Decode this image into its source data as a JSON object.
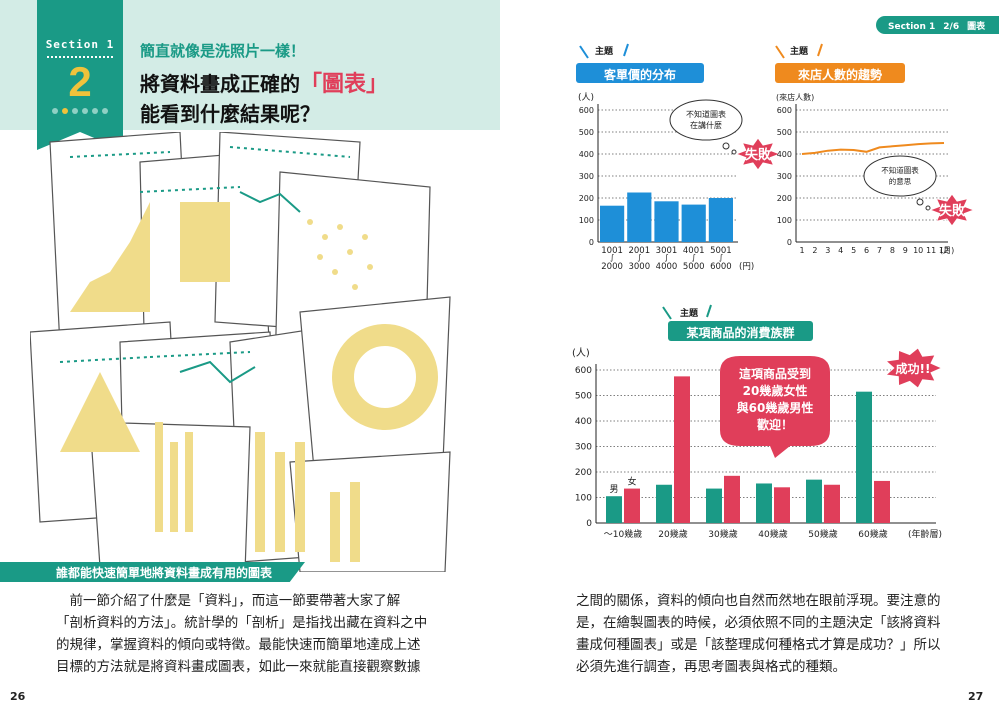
{
  "left_page": {
    "section_label": "Section 1",
    "section_number": "2",
    "subtitle": "簡直就像是洗照片一樣！",
    "title_line1_pre": "將資料畫成正確的",
    "title_highlight": "「圖表」",
    "title_line2": "能看到什麼結果呢？",
    "heading": "誰都能快速簡單地將資料畫成有用的圖表",
    "body_lines": [
      "　前一節介紹了什麼是「資料」，而這一節要帶著大家了解",
      "「剖析資料的方法」。統計學的「剖析」是指找出藏在資料之中",
      "的規律，掌握資料的傾向或特徵。最能快速而簡單地達成上述",
      "目標的方法就是將資料畫成圖表，如此一來就能直接觀察數據"
    ],
    "page_number": "26"
  },
  "right_page": {
    "section_tag_section": "Section 1",
    "section_tag_count": "2/6",
    "section_tag_label": "圖表",
    "theme_label": "主題",
    "body_lines": [
      "之間的關係，資料的傾向也自然而然地在眼前浮現。要注意的",
      "是，在繪製圖表的時候，必須依照不同的主題決定「該將資料",
      "畫成何種圖表」或是「該整理成何種格式才算是成功？」所以",
      "必須先進行調查，再思考圖表與格式的種類。"
    ],
    "page_number": "27"
  },
  "chart_data": [
    {
      "type": "bar",
      "title": "客單價的分布",
      "ylabel": "(人)",
      "xunit": "(円)",
      "ylim": [
        0,
        600
      ],
      "yticks": [
        "0",
        "100",
        "200",
        "300",
        "400",
        "500",
        "600"
      ],
      "categories": [
        {
          "top": "1001",
          "bottom": "2000"
        },
        {
          "top": "2001",
          "bottom": "3000"
        },
        {
          "top": "3001",
          "bottom": "4000"
        },
        {
          "top": "4001",
          "bottom": "5000"
        },
        {
          "top": "5001",
          "bottom": "6000"
        }
      ],
      "values": [
        165,
        225,
        185,
        170,
        200
      ],
      "bar_color": "#1e8fd8",
      "annotation": {
        "thought": [
          "不知道圖表",
          "在講什麼"
        ],
        "verdict": "失敗"
      }
    },
    {
      "type": "line",
      "title": "來店人數的趨勢",
      "ylabel": "(來店人數)",
      "xunit": "(月)",
      "ylim": [
        0,
        600
      ],
      "yticks": [
        "0",
        "100",
        "200",
        "300",
        "400",
        "500",
        "600"
      ],
      "x": [
        "1",
        "2",
        "3",
        "4",
        "5",
        "6",
        "7",
        "8",
        "9",
        "10",
        "11",
        "12"
      ],
      "values": [
        400,
        405,
        415,
        420,
        418,
        410,
        430,
        435,
        440,
        445,
        448,
        450
      ],
      "line_color": "#ef8a1e",
      "annotation": {
        "thought": [
          "不知道圖表",
          "的意思"
        ],
        "verdict": "失敗"
      }
    },
    {
      "type": "bar",
      "title": "某項商品的消費族群",
      "ylabel": "(人)",
      "xunit": "(年齡層)",
      "ylim": [
        0,
        600
      ],
      "yticks": [
        "0",
        "100",
        "200",
        "300",
        "400",
        "500",
        "600"
      ],
      "categories": [
        "〜10幾歲",
        "20幾歲",
        "30幾歲",
        "40幾歲",
        "50幾歲",
        "60幾歲"
      ],
      "series": [
        {
          "name": "男",
          "color": "#1a9a86",
          "values": [
            105,
            150,
            135,
            155,
            170,
            515
          ]
        },
        {
          "name": "女",
          "color": "#e03e5a",
          "values": [
            135,
            575,
            185,
            140,
            150,
            165
          ]
        }
      ],
      "annotation": {
        "callout": [
          "這項商品受到",
          "20幾歲女性",
          "與60幾歲男性",
          "歡迎！"
        ],
        "verdict": "成功!!"
      }
    }
  ],
  "colors": {
    "teal": "#1a9a86",
    "yellow": "#f0c23b",
    "pink": "#e03e5a",
    "blue": "#1e8fd8",
    "orange": "#ef8a1e"
  }
}
